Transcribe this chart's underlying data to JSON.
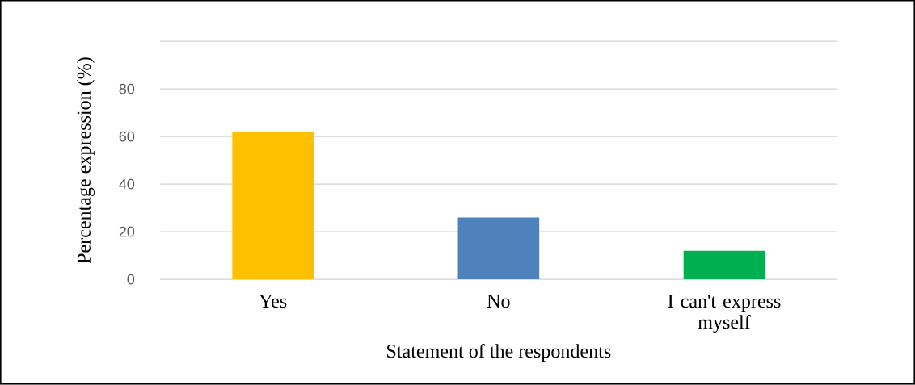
{
  "chart_data": {
    "type": "bar",
    "xlabel": "Statement of the respondents",
    "ylabel": "Percentage expression (%)",
    "categories": [
      "Yes",
      "No",
      "I can't express myself"
    ],
    "values": [
      62,
      26,
      12
    ],
    "colors": [
      "#ffc000",
      "#4f81bd",
      "#00b050"
    ],
    "ylim": [
      0,
      100
    ],
    "yticks": [
      0,
      20,
      40,
      60,
      80,
      {
        "value": 100,
        "label": null
      }
    ],
    "grid": "y"
  }
}
